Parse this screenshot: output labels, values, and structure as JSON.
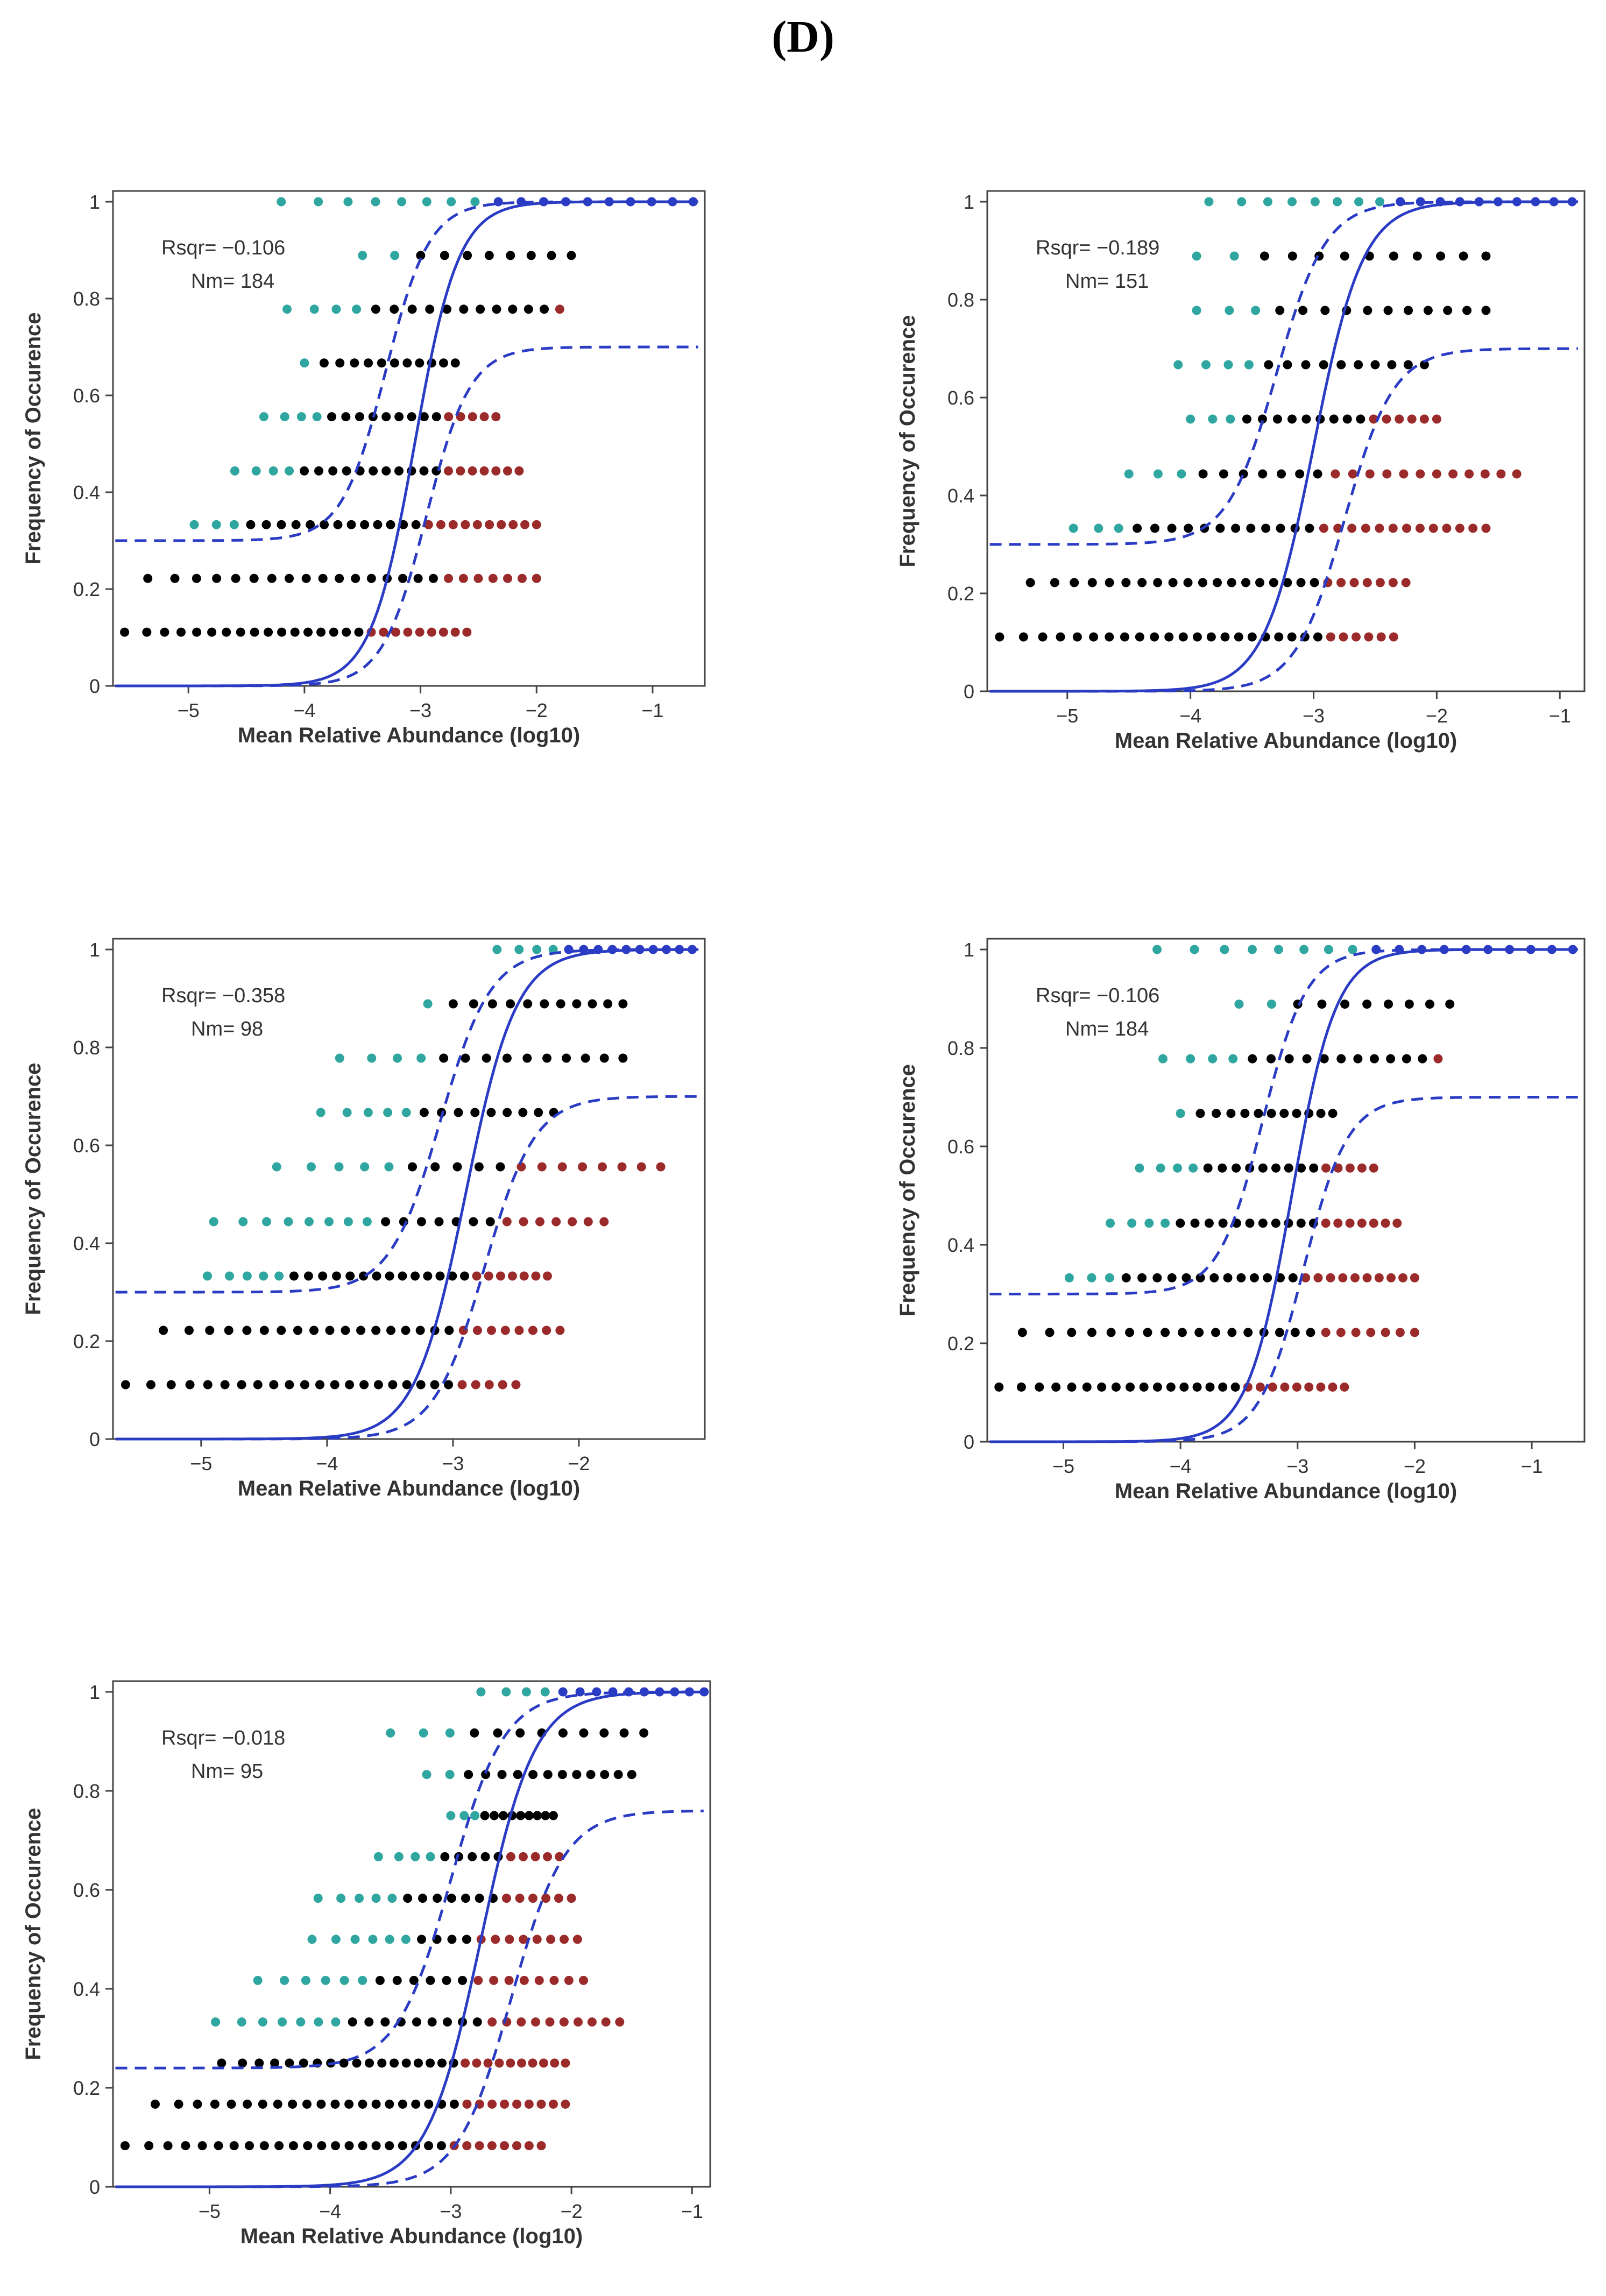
{
  "figure_label": "(D)",
  "colors": {
    "fit": "#2a3bc4",
    "above": "#2fa6a0",
    "neutral": "#000000",
    "below": "#9b2a2a",
    "frame": "#444444",
    "text": "#333333"
  },
  "chart_data": [
    {
      "type": "scatter",
      "xlabel": "Mean Relative Abundance (log10)",
      "ylabel": "Frequency of Occurence",
      "xlim": [
        -5.65,
        -0.55
      ],
      "ylim": [
        0,
        1
      ],
      "xticks": [
        -5,
        -4,
        -3,
        -2,
        -1
      ],
      "xtick_labels": [
        "−5",
        "−4",
        "−3",
        "−2",
        "−1"
      ],
      "yticks": [
        0,
        0.2,
        0.4,
        0.6,
        0.8,
        1
      ],
      "ytick_labels": [
        "0",
        "0.2",
        "0.4",
        "0.6",
        "0.8",
        "1"
      ],
      "rsqr_text": "Rsqr= −0.106",
      "nm_text": "Nm= 184",
      "fit": {
        "x0": -3.05,
        "k": 5.3
      },
      "lower_band": {
        "x0": -2.95,
        "k": 5.3,
        "max": 0.7
      },
      "upper_band": {
        "x0": -3.3,
        "k": 5.3,
        "min": 0.3
      },
      "levels": [
        {
          "y": 0.111,
          "from": -5.55,
          "to": -2.6,
          "black_until": -3.45,
          "cyan_until": null,
          "max_points": 26
        },
        {
          "y": 0.222,
          "from": -5.35,
          "to": -2.0,
          "black_until": -2.8,
          "cyan_until": null,
          "max_points": 24
        },
        {
          "y": 0.333,
          "from": -4.95,
          "to": -2.0,
          "black_until": -2.95,
          "cyan_until": -4.55,
          "max_points": 26
        },
        {
          "y": 0.444,
          "from": -4.6,
          "to": -2.15,
          "black_until": -2.85,
          "cyan_until": -4.1,
          "max_points": 22
        },
        {
          "y": 0.556,
          "from": -4.35,
          "to": -2.35,
          "black_until": -2.8,
          "cyan_until": -3.85,
          "max_points": 18
        },
        {
          "y": 0.667,
          "from": -4.0,
          "to": -2.7,
          "black_until": -2.7,
          "cyan_until": -3.85,
          "max_points": 12
        },
        {
          "y": 0.778,
          "from": -4.15,
          "to": -1.8,
          "black_until": -1.8,
          "cyan_until": -3.55,
          "max_points": 16
        },
        {
          "y": 0.889,
          "from": -3.5,
          "to": -1.7,
          "black_until": -1.7,
          "cyan_until": -3.0,
          "max_points": 10
        },
        {
          "y": 1.0,
          "from": -4.2,
          "to": -0.65,
          "black_until": null,
          "cyan_until": -2.4,
          "max_points": 18
        }
      ]
    },
    {
      "type": "scatter",
      "xlabel": "Mean Relative Abundance (log10)",
      "ylabel": "Frequency of Occurence",
      "xlim": [
        -5.65,
        -0.8
      ],
      "ylim": [
        0,
        1
      ],
      "xticks": [
        -5,
        -4,
        -3,
        -2,
        -1
      ],
      "xtick_labels": [
        "−5",
        "−4",
        "−3",
        "−2",
        "−1"
      ],
      "yticks": [
        0,
        0.2,
        0.4,
        0.6,
        0.8,
        1
      ],
      "ytick_labels": [
        "0",
        "0.2",
        "0.4",
        "0.6",
        "0.8",
        "1"
      ],
      "rsqr_text": "Rsqr= −0.189",
      "nm_text": "Nm= 151",
      "fit": {
        "x0": -3.0,
        "k": 5.0
      },
      "lower_band": {
        "x0": -2.75,
        "k": 5.0,
        "max": 0.7
      },
      "upper_band": {
        "x0": -3.3,
        "k": 5.0,
        "min": 0.3
      },
      "levels": [
        {
          "y": 0.111,
          "from": -5.55,
          "to": -2.35,
          "black_until": -2.9,
          "cyan_until": null,
          "max_points": 28
        },
        {
          "y": 0.222,
          "from": -5.3,
          "to": -2.25,
          "black_until": -2.95,
          "cyan_until": null,
          "max_points": 26
        },
        {
          "y": 0.333,
          "from": -4.95,
          "to": -1.6,
          "black_until": -2.95,
          "cyan_until": -4.5,
          "max_points": 28
        },
        {
          "y": 0.444,
          "from": -4.5,
          "to": -1.35,
          "black_until": -2.95,
          "cyan_until": -3.95,
          "max_points": 22
        },
        {
          "y": 0.556,
          "from": -4.0,
          "to": -2.0,
          "black_until": -2.6,
          "cyan_until": -3.55,
          "max_points": 18
        },
        {
          "y": 0.667,
          "from": -4.1,
          "to": -2.1,
          "black_until": -2.1,
          "cyan_until": -3.5,
          "max_points": 14
        },
        {
          "y": 0.778,
          "from": -3.95,
          "to": -1.6,
          "black_until": -1.6,
          "cyan_until": -3.4,
          "max_points": 14
        },
        {
          "y": 0.889,
          "from": -3.95,
          "to": -1.6,
          "black_until": -1.6,
          "cyan_until": -3.4,
          "max_points": 12
        },
        {
          "y": 1.0,
          "from": -3.85,
          "to": -0.9,
          "black_until": null,
          "cyan_until": -2.4,
          "max_points": 18
        }
      ]
    },
    {
      "type": "scatter",
      "xlabel": "Mean Relative Abundance (log10)",
      "ylabel": "Frequency of Occurence",
      "xlim": [
        -5.7,
        -1.0
      ],
      "ylim": [
        0,
        1
      ],
      "xticks": [
        -5,
        -4,
        -3,
        -2
      ],
      "xtick_labels": [
        "−5",
        "−4",
        "−3",
        "−2"
      ],
      "yticks": [
        0,
        0.2,
        0.4,
        0.6,
        0.8,
        1
      ],
      "ytick_labels": [
        "0",
        "0.2",
        "0.4",
        "0.6",
        "0.8",
        "1"
      ],
      "rsqr_text": "Rsqr= −0.358",
      "nm_text": "Nm= 98",
      "fit": {
        "x0": -2.9,
        "k": 5.0
      },
      "lower_band": {
        "x0": -2.75,
        "k": 5.0,
        "max": 0.7
      },
      "upper_band": {
        "x0": -3.1,
        "k": 5.0,
        "min": 0.3
      },
      "levels": [
        {
          "y": 0.111,
          "from": -5.6,
          "to": -2.5,
          "black_until": -3.0,
          "cyan_until": null,
          "max_points": 26
        },
        {
          "y": 0.222,
          "from": -5.3,
          "to": -2.15,
          "black_until": -3.0,
          "cyan_until": null,
          "max_points": 26
        },
        {
          "y": 0.333,
          "from": -4.95,
          "to": -2.25,
          "black_until": -2.9,
          "cyan_until": -4.35,
          "max_points": 26
        },
        {
          "y": 0.444,
          "from": -4.9,
          "to": -1.8,
          "black_until": -2.7,
          "cyan_until": -3.6,
          "max_points": 22
        },
        {
          "y": 0.556,
          "from": -4.4,
          "to": -1.35,
          "black_until": -2.5,
          "cyan_until": -3.35,
          "max_points": 18
        },
        {
          "y": 0.667,
          "from": -4.05,
          "to": -2.2,
          "black_until": -2.2,
          "cyan_until": -3.3,
          "max_points": 14
        },
        {
          "y": 0.778,
          "from": -3.9,
          "to": -1.65,
          "black_until": -1.65,
          "cyan_until": -3.2,
          "max_points": 14
        },
        {
          "y": 0.889,
          "from": -3.2,
          "to": -1.65,
          "black_until": -1.65,
          "cyan_until": -3.0,
          "max_points": 12
        },
        {
          "y": 1.0,
          "from": -2.65,
          "to": -1.1,
          "black_until": null,
          "cyan_until": -2.2,
          "max_points": 14
        }
      ]
    },
    {
      "type": "scatter",
      "xlabel": "Mean Relative Abundance (log10)",
      "ylabel": "Frequency of Occurence",
      "xlim": [
        -5.65,
        -0.55
      ],
      "ylim": [
        0,
        1
      ],
      "xticks": [
        -5,
        -4,
        -3,
        -2,
        -1
      ],
      "xtick_labels": [
        "−5",
        "−4",
        "−3",
        "−2",
        "−1"
      ],
      "yticks": [
        0,
        0.2,
        0.4,
        0.6,
        0.8,
        1
      ],
      "ytick_labels": [
        "0",
        "0.2",
        "0.4",
        "0.6",
        "0.8",
        "1"
      ],
      "rsqr_text": "Rsqr= −0.106",
      "nm_text": "Nm= 184",
      "fit": {
        "x0": -3.05,
        "k": 5.3
      },
      "lower_band": {
        "x0": -2.95,
        "k": 5.3,
        "max": 0.7
      },
      "upper_band": {
        "x0": -3.3,
        "k": 5.3,
        "min": 0.3
      },
      "levels": [
        {
          "y": 0.111,
          "from": -5.55,
          "to": -2.6,
          "black_until": -3.45,
          "cyan_until": null,
          "max_points": 26
        },
        {
          "y": 0.222,
          "from": -5.35,
          "to": -2.0,
          "black_until": -2.8,
          "cyan_until": null,
          "max_points": 24
        },
        {
          "y": 0.333,
          "from": -4.95,
          "to": -2.0,
          "black_until": -2.95,
          "cyan_until": -4.55,
          "max_points": 26
        },
        {
          "y": 0.444,
          "from": -4.6,
          "to": -2.15,
          "black_until": -2.85,
          "cyan_until": -4.1,
          "max_points": 22
        },
        {
          "y": 0.556,
          "from": -4.35,
          "to": -2.35,
          "black_until": -2.8,
          "cyan_until": -3.85,
          "max_points": 18
        },
        {
          "y": 0.667,
          "from": -4.0,
          "to": -2.7,
          "black_until": -2.7,
          "cyan_until": -3.85,
          "max_points": 12
        },
        {
          "y": 0.778,
          "from": -4.15,
          "to": -1.8,
          "black_until": -1.8,
          "cyan_until": -3.55,
          "max_points": 16
        },
        {
          "y": 0.889,
          "from": -3.5,
          "to": -1.7,
          "black_until": -1.7,
          "cyan_until": -3.0,
          "max_points": 10
        },
        {
          "y": 1.0,
          "from": -4.2,
          "to": -0.65,
          "black_until": null,
          "cyan_until": -2.4,
          "max_points": 18
        }
      ]
    },
    {
      "type": "scatter",
      "xlabel": "Mean Relative Abundance (log10)",
      "ylabel": "Frequency of Occurence",
      "xlim": [
        -5.8,
        -0.85
      ],
      "ylim": [
        0,
        1
      ],
      "xticks": [
        -5,
        -4,
        -3,
        -2,
        -1
      ],
      "xtick_labels": [
        "−5",
        "−4",
        "−3",
        "−2",
        "−1"
      ],
      "yticks": [
        0,
        0.2,
        0.4,
        0.6,
        0.8,
        1
      ],
      "ytick_labels": [
        "0",
        "0.2",
        "0.4",
        "0.6",
        "0.8",
        "1"
      ],
      "rsqr_text": "Rsqr= −0.018",
      "nm_text": "Nm= 95",
      "fit": {
        "x0": -2.75,
        "k": 4.5
      },
      "lower_band": {
        "x0": -2.5,
        "k": 4.5,
        "max": 0.76
      },
      "upper_band": {
        "x0": -3.0,
        "k": 4.5,
        "min": 0.24
      },
      "levels": [
        {
          "y": 0.083,
          "from": -5.7,
          "to": -2.25,
          "black_until": -3.05,
          "cyan_until": null,
          "max_points": 30
        },
        {
          "y": 0.167,
          "from": -5.45,
          "to": -2.05,
          "black_until": -2.95,
          "cyan_until": null,
          "max_points": 30
        },
        {
          "y": 0.25,
          "from": -4.9,
          "to": -2.05,
          "black_until": -2.95,
          "cyan_until": null,
          "max_points": 28
        },
        {
          "y": 0.333,
          "from": -4.95,
          "to": -1.6,
          "black_until": -2.75,
          "cyan_until": -3.9,
          "max_points": 26
        },
        {
          "y": 0.417,
          "from": -4.6,
          "to": -1.9,
          "black_until": -2.85,
          "cyan_until": -3.7,
          "max_points": 20
        },
        {
          "y": 0.5,
          "from": -4.15,
          "to": -1.95,
          "black_until": -2.75,
          "cyan_until": -3.35,
          "max_points": 18
        },
        {
          "y": 0.583,
          "from": -4.1,
          "to": -2.0,
          "black_until": -2.55,
          "cyan_until": -3.45,
          "max_points": 18
        },
        {
          "y": 0.667,
          "from": -3.6,
          "to": -2.1,
          "black_until": -2.55,
          "cyan_until": -3.05,
          "max_points": 14
        },
        {
          "y": 0.75,
          "from": -3.0,
          "to": -2.15,
          "black_until": -2.15,
          "cyan_until": -2.75,
          "max_points": 12
        },
        {
          "y": 0.833,
          "from": -3.2,
          "to": -1.5,
          "black_until": -1.5,
          "cyan_until": -3.0,
          "max_points": 14
        },
        {
          "y": 0.917,
          "from": -3.5,
          "to": -1.4,
          "black_until": -1.4,
          "cyan_until": -2.95,
          "max_points": 12
        },
        {
          "y": 1.0,
          "from": -2.75,
          "to": -0.9,
          "black_until": null,
          "cyan_until": -2.1,
          "max_points": 14
        }
      ]
    }
  ]
}
